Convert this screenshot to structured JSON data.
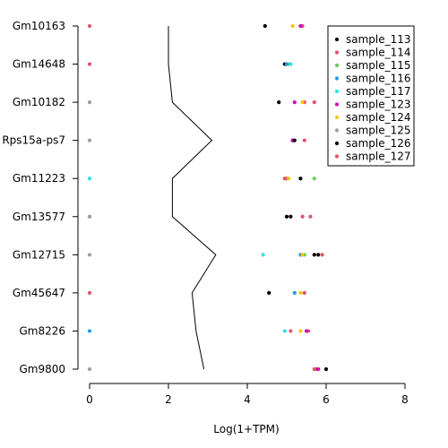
{
  "chart_data": {
    "type": "scatter",
    "title": "",
    "xlabel": "Log(1+TPM)",
    "ylabel": "",
    "xlim": [
      0,
      8
    ],
    "x_ticks": [
      0,
      2,
      4,
      6,
      8
    ],
    "grid": false,
    "legend_position": "top-right",
    "categories": [
      "Gm10163",
      "Gm14648",
      "Gm10182",
      "Rps15a-ps7",
      "Gm11223",
      "Gm13577",
      "Gm12715",
      "Gm45647",
      "Gm8226",
      "Gm9800"
    ],
    "line": {
      "color": "#000000",
      "values": [
        2.0,
        2.0,
        2.1,
        3.1,
        2.1,
        2.1,
        3.2,
        2.6,
        2.7,
        2.9
      ]
    },
    "series": [
      {
        "name": "sample_113",
        "color": "#000000",
        "values": [
          4.45,
          4.95,
          4.8,
          5.15,
          5.35,
          5.0,
          5.7,
          4.55,
          null,
          6.0
        ]
      },
      {
        "name": "sample_114",
        "color": "#DF536B",
        "values": [
          5.4,
          null,
          5.45,
          5.45,
          5.0,
          5.4,
          5.9,
          5.45,
          5.55,
          5.75
        ]
      },
      {
        "name": "sample_115",
        "color": "#61D04F",
        "values": [
          null,
          5.05,
          null,
          null,
          5.7,
          null,
          5.45,
          null,
          null,
          null
        ]
      },
      {
        "name": "sample_116",
        "color": "#2297E6",
        "values": [
          null,
          5.0,
          null,
          null,
          null,
          null,
          5.35,
          5.2,
          null,
          null
        ]
      },
      {
        "name": "sample_117",
        "color": "#28E2E5",
        "values": [
          null,
          5.1,
          null,
          null,
          null,
          null,
          4.4,
          null,
          4.95,
          null
        ]
      },
      {
        "name": "sample_123",
        "color": "#CD0BBC",
        "values": [
          5.35,
          null,
          5.2,
          5.15,
          null,
          null,
          null,
          null,
          5.5,
          5.8
        ]
      },
      {
        "name": "sample_124",
        "color": "#F5C710",
        "values": [
          5.15,
          null,
          5.4,
          null,
          5.05,
          null,
          5.4,
          5.35,
          5.35,
          null
        ]
      },
      {
        "name": "sample_125",
        "color": "#9E9E9E",
        "values": [
          null,
          null,
          0,
          0,
          null,
          0,
          0,
          null,
          null,
          0
        ]
      },
      {
        "name": "sample_126",
        "color": "#000000",
        "values": [
          null,
          null,
          null,
          5.2,
          null,
          5.1,
          5.8,
          null,
          null,
          null
        ]
      },
      {
        "name": "sample_127",
        "color": "#DF536B",
        "values": [
          0,
          0,
          5.7,
          null,
          4.95,
          5.6,
          null,
          0,
          5.1,
          5.7
        ]
      }
    ],
    "extra_points": [
      {
        "category": "Gm11223",
        "x": 0,
        "color": "#28E2E5"
      },
      {
        "category": "Gm8226",
        "x": 0,
        "color": "#2297E6"
      }
    ]
  }
}
